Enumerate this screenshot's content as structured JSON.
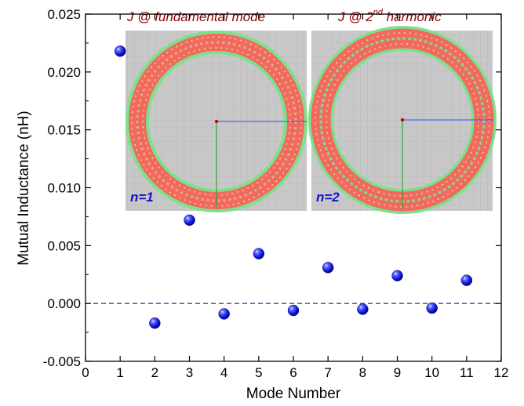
{
  "chart_data": {
    "type": "scatter",
    "xlabel": "Mode Number",
    "ylabel": "Mutual Inductance (nH)",
    "xlim": [
      0,
      12
    ],
    "ylim": [
      -0.005,
      0.025
    ],
    "x_ticks": [
      "0",
      "1",
      "2",
      "3",
      "4",
      "5",
      "6",
      "7",
      "8",
      "9",
      "10",
      "11",
      "12"
    ],
    "y_ticks": [
      "-0.005",
      "0.000",
      "0.005",
      "0.010",
      "0.015",
      "0.020",
      "0.025"
    ],
    "x_tick_values": [
      0,
      1,
      2,
      3,
      4,
      5,
      6,
      7,
      8,
      9,
      10,
      11,
      12
    ],
    "y_tick_values": [
      -0.005,
      0.0,
      0.005,
      0.01,
      0.015,
      0.02,
      0.025
    ],
    "reference_line": {
      "y": 0.0,
      "style": "dashed",
      "color": "#1a1aa0"
    },
    "grid": false,
    "marker_color": "#1a1aee",
    "series": [
      {
        "x": [
          1,
          2,
          3,
          4,
          5,
          6,
          7,
          8,
          9,
          10,
          11
        ],
        "y": [
          0.0218,
          -0.0017,
          0.0072,
          -0.0009,
          0.0043,
          -0.0006,
          0.0031,
          -0.0005,
          0.0024,
          -0.0004,
          0.002
        ]
      }
    ],
    "insets": [
      {
        "title_prefix": "J @ fundamental mode",
        "title_sup": "",
        "title_suffix": "",
        "label": "n=1"
      },
      {
        "title_prefix": "J @ 2",
        "title_sup": "nd",
        "title_suffix": " harmonic",
        "label": "n=2"
      }
    ]
  }
}
